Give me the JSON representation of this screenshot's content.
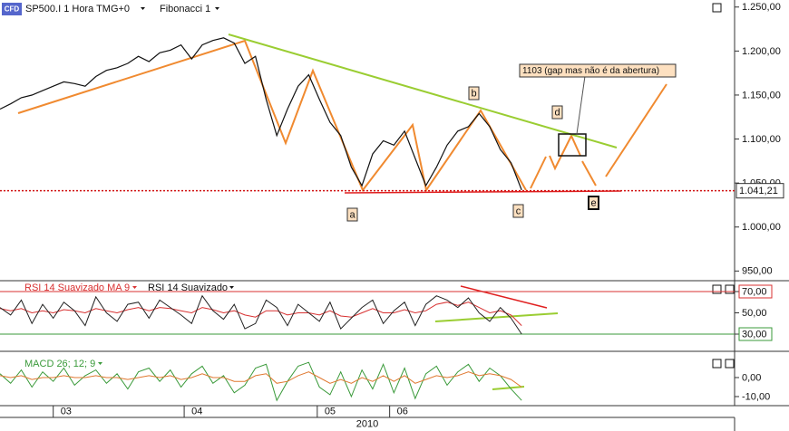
{
  "logo": "CFD",
  "chart_data": [
    {
      "type": "line",
      "title": "SP500.I 1 Hora TMG+0",
      "study": "Fibonacci 1",
      "color": "#111111",
      "values": [
        1134,
        1140,
        1147,
        1150,
        1155,
        1160,
        1165,
        1163,
        1160,
        1171,
        1178,
        1181,
        1186,
        1194,
        1188,
        1198,
        1201,
        1207,
        1191,
        1207,
        1212,
        1215,
        1209,
        1186,
        1194,
        1145,
        1104,
        1134,
        1160,
        1173,
        1145,
        1119,
        1104,
        1068,
        1047,
        1083,
        1098,
        1093,
        1109,
        1078,
        1047,
        1068,
        1093,
        1109,
        1114,
        1129,
        1114,
        1088,
        1073,
        1042
      ],
      "xlim": [
        0,
        69
      ],
      "xticks": [
        {
          "value": 5,
          "label": "03"
        },
        {
          "value": 17.3,
          "label": "04"
        },
        {
          "value": 29.8,
          "label": "05"
        },
        {
          "value": 36.6,
          "label": "06"
        }
      ],
      "xlabel": "2010",
      "ylim": [
        939,
        1258
      ],
      "yticks": [
        {
          "value": 1250,
          "label": "1.250,00"
        },
        {
          "value": 1200,
          "label": "1.200,00"
        },
        {
          "value": 1150,
          "label": "1.150,00"
        },
        {
          "value": 1100,
          "label": "1.100,00"
        },
        {
          "value": 1050,
          "label": "1.050,00"
        },
        {
          "value": 1000,
          "label": "1.000,00"
        },
        {
          "value": 950,
          "label": "950,00"
        }
      ],
      "last_value": {
        "value": 1041.21,
        "label": "1.041,21"
      },
      "annotations": [
        "a",
        "b",
        "c",
        "d",
        "e",
        "1103 (gap mas não é da abertura)"
      ]
    },
    {
      "type": "line",
      "series": [
        {
          "name": "RSI 14 Suavizado MA 9",
          "color": "#d83030",
          "values": [
            54,
            52,
            54,
            50,
            52,
            50,
            53,
            52,
            50,
            54,
            52,
            50,
            53,
            55,
            52,
            55,
            54,
            52,
            50,
            55,
            53,
            50,
            52,
            48,
            46,
            52,
            52,
            48,
            50,
            50,
            48,
            52,
            47,
            46,
            50,
            54,
            50,
            50,
            53,
            50,
            52,
            58,
            60,
            57,
            60,
            55,
            50,
            52,
            48,
            38
          ]
        },
        {
          "name": "RSI 14 Suavizado",
          "color": "#222222",
          "values": [
            55,
            48,
            62,
            40,
            58,
            45,
            60,
            52,
            38,
            65,
            50,
            42,
            58,
            60,
            45,
            62,
            55,
            48,
            40,
            66,
            52,
            44,
            58,
            35,
            40,
            62,
            55,
            38,
            58,
            50,
            42,
            60,
            35,
            45,
            55,
            62,
            40,
            52,
            60,
            38,
            58,
            66,
            62,
            55,
            64,
            50,
            42,
            55,
            45,
            30
          ]
        }
      ],
      "ylim": [
        14.7,
        78.5
      ],
      "yticks": [
        {
          "value": 70,
          "label": "70,00",
          "color": "#d83030"
        },
        {
          "value": 50,
          "label": "50,00"
        },
        {
          "value": 30,
          "label": "30,00",
          "color": "#3a9a3a"
        }
      ]
    },
    {
      "type": "line",
      "series": [
        {
          "name": "MACD 26; 12; 9",
          "color": "#3a9a3a",
          "values": [
            2,
            -3,
            4,
            -5,
            3,
            -2,
            5,
            -4,
            1,
            4,
            -3,
            2,
            -6,
            3,
            5,
            -2,
            4,
            -5,
            2,
            6,
            -3,
            1,
            -8,
            -4,
            5,
            7,
            -12,
            -2,
            6,
            8,
            -5,
            -9,
            3,
            -10,
            4,
            -6,
            7,
            -8,
            5,
            -11,
            2,
            6,
            -4,
            3,
            7,
            -2,
            5,
            1,
            -6,
            -12
          ]
        },
        {
          "color": "#e07830",
          "values": [
            1,
            0,
            1,
            -1,
            0,
            0,
            1,
            0,
            0,
            1,
            0,
            0,
            -1,
            0,
            1,
            0,
            1,
            -1,
            0,
            2,
            0,
            0,
            -2,
            -2,
            1,
            2,
            -3,
            -2,
            1,
            3,
            0,
            -3,
            -1,
            -3,
            0,
            -2,
            1,
            -2,
            1,
            -3,
            -1,
            1,
            0,
            1,
            3,
            1,
            2,
            1,
            -1,
            -5
          ]
        }
      ],
      "ylim": [
        -14.3,
        11.9
      ],
      "yticks": [
        {
          "value": 0,
          "label": "0,00"
        },
        {
          "value": -10,
          "label": "-10,00"
        }
      ]
    }
  ]
}
